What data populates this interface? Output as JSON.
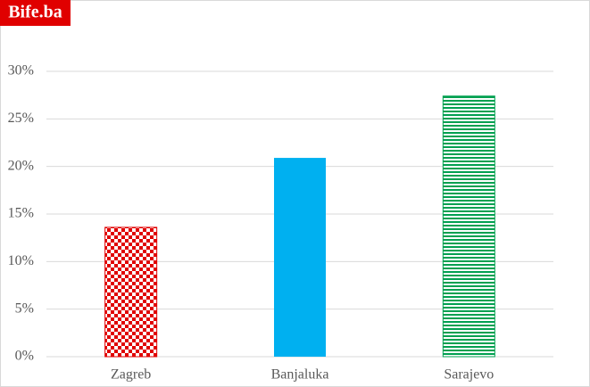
{
  "chart_data": {
    "type": "bar",
    "watermark": "Bife.ba",
    "categories": [
      "Zagreb",
      "Banjaluka",
      "Sarajevo"
    ],
    "values": [
      13.6,
      20.9,
      27.4
    ],
    "colors": [
      "#e00000",
      "#00b0f0",
      "#00a050"
    ],
    "patterns": [
      "checker",
      "solid",
      "horizontal-stripes"
    ],
    "ylim": [
      0,
      30
    ],
    "yticks": [
      {
        "value": 0,
        "label": "0%"
      },
      {
        "value": 5,
        "label": "5%"
      },
      {
        "value": 10,
        "label": "10%"
      },
      {
        "value": 15,
        "label": "15%"
      },
      {
        "value": 20,
        "label": "20%"
      },
      {
        "value": 25,
        "label": "25%"
      },
      {
        "value": 30,
        "label": "30%"
      }
    ],
    "grid": true
  }
}
